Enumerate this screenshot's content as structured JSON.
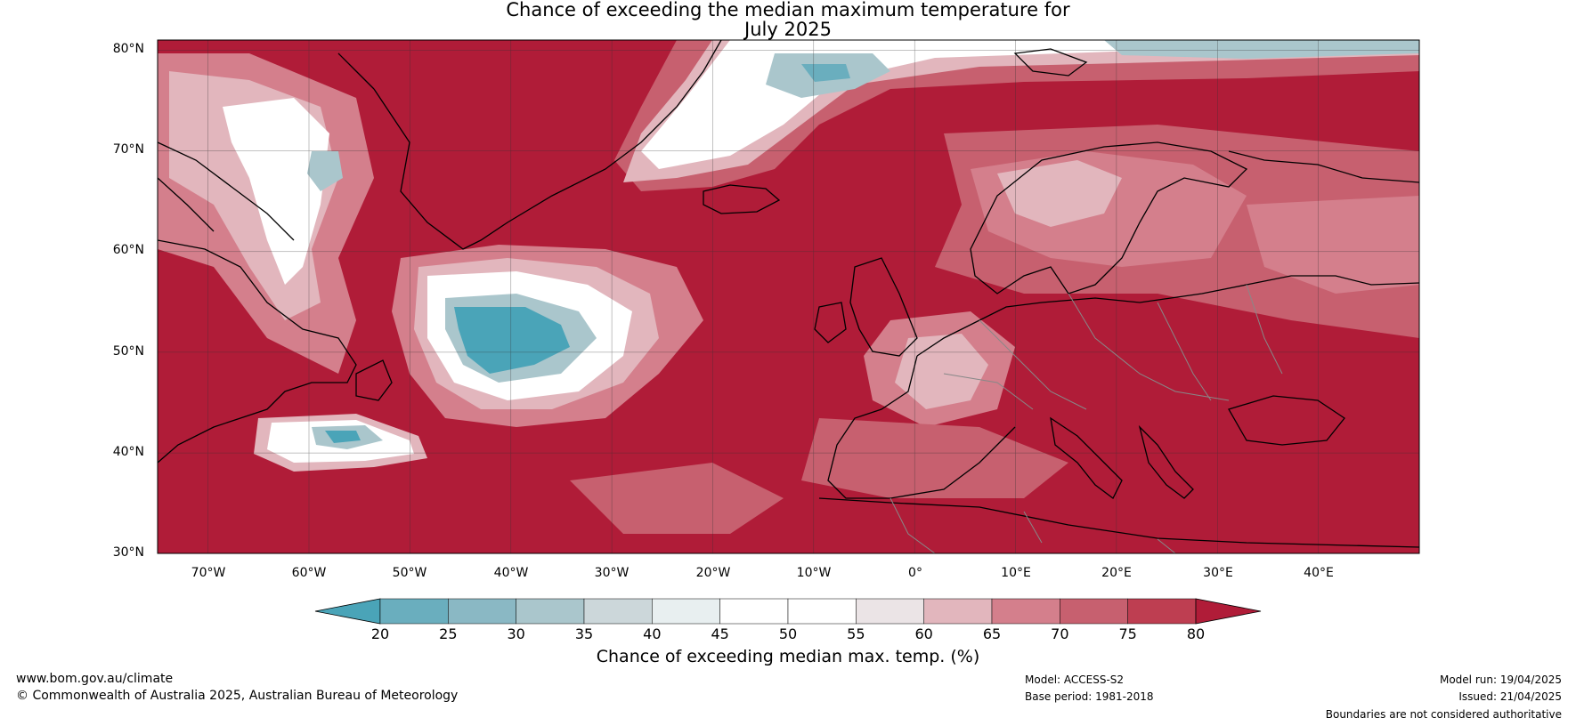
{
  "title": {
    "line1": "Chance of exceeding the median maximum temperature for",
    "line2": "July 2025"
  },
  "map": {
    "lat_labels": [
      "80°N",
      "70°N",
      "60°N",
      "50°N",
      "40°N",
      "30°N"
    ],
    "lon_labels": [
      "70°W",
      "60°W",
      "50°W",
      "40°W",
      "30°W",
      "20°W",
      "10°W",
      "0°",
      "10°E",
      "20°E",
      "30°E",
      "40°E"
    ],
    "extent": {
      "lon_min": -75,
      "lon_max": 50,
      "lat_min": 30,
      "lat_max": 81
    }
  },
  "colorbar": {
    "ticks": [
      "20",
      "25",
      "30",
      "35",
      "40",
      "45",
      "50",
      "55",
      "60",
      "65",
      "70",
      "75",
      "80"
    ],
    "label": "Chance of exceeding median max. temp. (%)",
    "colors": [
      "#4aa4b8",
      "#6aaebe",
      "#8ab8c4",
      "#aac6cc",
      "#ccd7da",
      "#e8eff0",
      "#ffffff",
      "#ffffff",
      "#ebe4e6",
      "#e2b6bd",
      "#d47f8c",
      "#c7606f",
      "#be3e51",
      "#b01c38"
    ]
  },
  "footer": {
    "website": "www.bom.gov.au/climate",
    "copyright": "© Commonwealth of Australia 2025, Australian Bureau of Meteorology",
    "model": "Model: ACCESS-S2",
    "base_period": "Base period: 1981-2018",
    "model_run": "Model run: 19/04/2025",
    "issued": "Issued: 21/04/2025",
    "disclaimer": "Boundaries are not considered authoritative"
  }
}
